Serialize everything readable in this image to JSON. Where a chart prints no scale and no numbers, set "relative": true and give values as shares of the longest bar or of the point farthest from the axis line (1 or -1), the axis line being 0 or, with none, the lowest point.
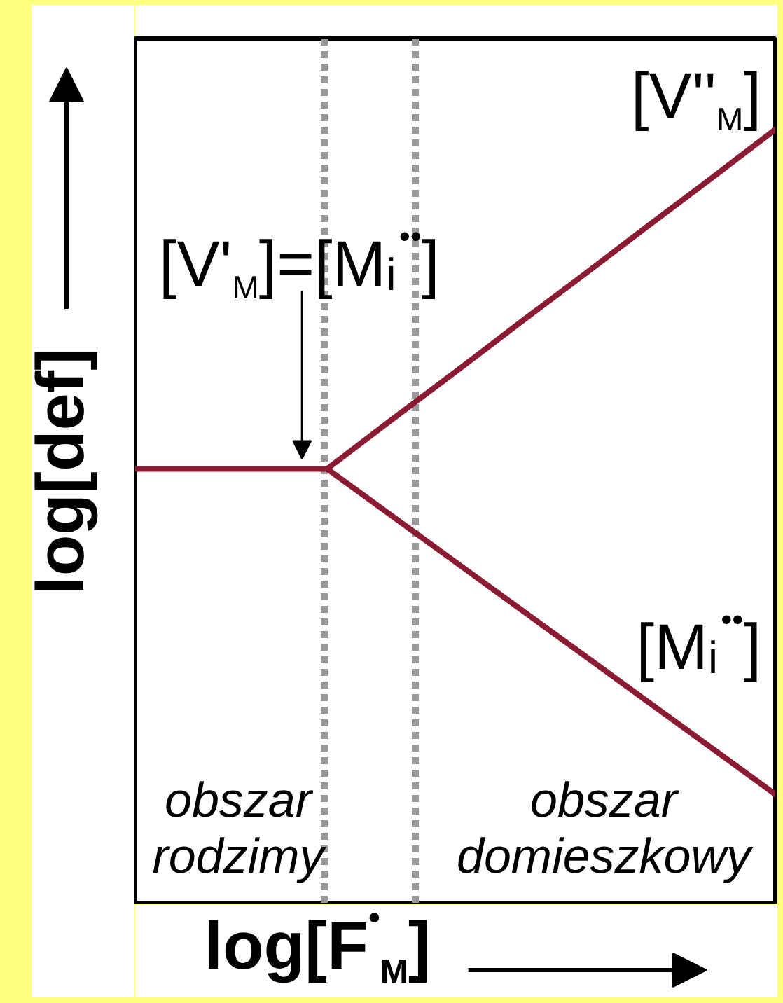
{
  "chart_data": {
    "type": "line",
    "xlabel": "log[F$^{•}$$_{M}$]",
    "ylabel": "log[def]",
    "relative": true,
    "grid": false,
    "tick_labels": false,
    "categories": [
      null,
      null,
      null,
      null,
      null,
      null,
      null,
      null,
      null,
      null,
      null
    ],
    "series": [
      {
        "name": "[V'$_{M}$]=[Mᵢ$^{••}$]",
        "color": "#8b1a33",
        "values": [
          0.562,
          0.562,
          0.562,
          0.562,
          null,
          null,
          null,
          null,
          null,
          null,
          null
        ]
      },
      {
        "name": "[V''$_{M}$]",
        "color": "#8b1a33",
        "values": [
          null,
          null,
          null,
          0.562,
          0.625,
          0.687,
          0.75,
          0.812,
          0.875,
          0.937,
          1
        ]
      },
      {
        "name": "[Mᵢ$^{••}$]",
        "color": "#8b1a33",
        "values": [
          null,
          null,
          null,
          0.562,
          0.502,
          0.442,
          0.382,
          0.322,
          0.262,
          0.202,
          0.142
        ]
      }
    ],
    "annotations": [
      "obszar\nrodzimy",
      "obszar\ndomieszkowy"
    ]
  }
}
